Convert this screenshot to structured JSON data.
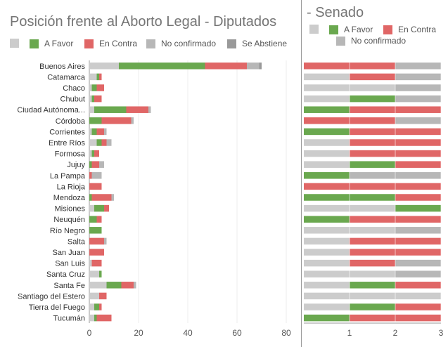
{
  "colors": {
    "blank": "#cccccc",
    "a_favor": "#6aa84f",
    "en_contra": "#e06666",
    "no_confirmado": "#b7b7b7",
    "se_abstiene": "#999999",
    "grid": "#eeeeee",
    "axis": "#999999"
  },
  "chart_data": [
    {
      "type": "bar",
      "orientation": "horizontal",
      "stacked": true,
      "title": "Posición frente al Aborto Legal - Diputados",
      "categories": [
        "Buenos Aires",
        "Catamarca",
        "Chaco",
        "Chubut",
        "Ciudad Autónoma...",
        "Córdoba",
        "Corrientes",
        "Entre Ríos",
        "Formosa",
        "Jujuy",
        "La Pampa",
        "La Rioja",
        "Mendoza",
        "Misiones",
        "Neuquén",
        "Río Negro",
        "Salta",
        "San Juan",
        "San Luis",
        "Santa Cruz",
        "Santa Fe",
        "Santiago del Estero",
        "Tierra del Fuego",
        "Tucumán"
      ],
      "series": [
        {
          "name": "",
          "color_key": "blank",
          "values": [
            12,
            3,
            1,
            1,
            2,
            0,
            1,
            3,
            1,
            0,
            0,
            0,
            0,
            2,
            0,
            0,
            0,
            0,
            1,
            4,
            7,
            4,
            2,
            2
          ]
        },
        {
          "name": "A Favor",
          "color_key": "a_favor",
          "values": [
            35,
            1,
            2,
            1,
            13,
            5,
            2,
            2,
            1,
            1,
            0,
            0,
            1,
            4,
            3,
            5,
            0,
            0,
            0,
            1,
            6,
            0,
            2,
            1
          ]
        },
        {
          "name": "En Contra",
          "color_key": "en_contra",
          "values": [
            17,
            1,
            3,
            3,
            9,
            12,
            3,
            2,
            2,
            3,
            1,
            5,
            8,
            2,
            2,
            0,
            6,
            6,
            4,
            0,
            5,
            3,
            1,
            6
          ]
        },
        {
          "name": "No confirmado",
          "color_key": "no_confirmado",
          "values": [
            5,
            0,
            0,
            0,
            1,
            1,
            1,
            2,
            0,
            2,
            4,
            0,
            1,
            0,
            0,
            0,
            1,
            0,
            0,
            0,
            1,
            0,
            0,
            0
          ]
        },
        {
          "name": "Se Abstiene",
          "color_key": "se_abstiene",
          "values": [
            1,
            0,
            0,
            0,
            0,
            0,
            0,
            0,
            0,
            0,
            0,
            0,
            0,
            0,
            0,
            0,
            0,
            0,
            0,
            0,
            0,
            0,
            0,
            0
          ]
        }
      ],
      "xlim": [
        0,
        80
      ],
      "xticks": [
        0,
        20,
        40,
        60,
        80
      ],
      "grid": true,
      "legend_position": "top"
    },
    {
      "type": "bar",
      "orientation": "horizontal",
      "stacked": true,
      "title": "- Senado",
      "categories": [
        "Buenos Aires",
        "Catamarca",
        "Chaco",
        "Chubut",
        "Ciudad Autónoma...",
        "Córdoba",
        "Corrientes",
        "Entre Ríos",
        "Formosa",
        "Jujuy",
        "La Pampa",
        "La Rioja",
        "Mendoza",
        "Misiones",
        "Neuquén",
        "Río Negro",
        "Salta",
        "San Juan",
        "San Luis",
        "Santa Cruz",
        "Santa Fe",
        "Santiago del Estero",
        "Tierra del Fuego",
        "Tucumán"
      ],
      "series": [
        {
          "name": "",
          "color_key": "blank",
          "values": [
            0,
            1,
            2,
            1,
            0,
            0,
            0,
            1,
            1,
            1,
            0,
            0,
            0,
            2,
            0,
            2,
            1,
            1,
            1,
            2,
            1,
            3,
            1,
            0
          ]
        },
        {
          "name": "A Favor",
          "color_key": "a_favor",
          "values": [
            0,
            0,
            0,
            1,
            1,
            0,
            1,
            0,
            0,
            1,
            1,
            0,
            2,
            1,
            1,
            0,
            0,
            0,
            0,
            0,
            1,
            0,
            1,
            1
          ]
        },
        {
          "name": "En Contra",
          "color_key": "en_contra",
          "values": [
            2,
            1,
            0,
            0,
            2,
            2,
            2,
            2,
            2,
            1,
            0,
            3,
            1,
            0,
            2,
            0,
            2,
            2,
            1,
            0,
            1,
            0,
            1,
            2
          ]
        },
        {
          "name": "No confirmado",
          "color_key": "no_confirmado",
          "values": [
            1,
            1,
            1,
            1,
            0,
            1,
            0,
            0,
            0,
            0,
            2,
            0,
            0,
            0,
            0,
            1,
            0,
            0,
            1,
            1,
            0,
            0,
            0,
            0
          ]
        }
      ],
      "xlim": [
        0,
        3
      ],
      "xticks": [
        1,
        2,
        3
      ],
      "legend_position": "top"
    }
  ]
}
